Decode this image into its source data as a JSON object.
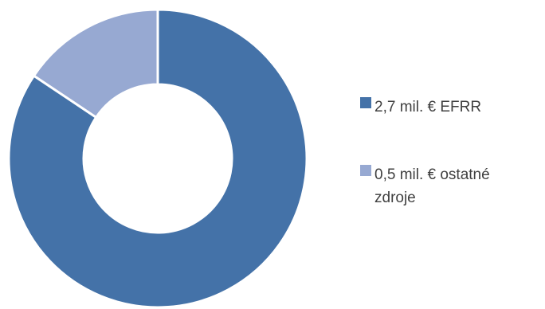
{
  "chart_data": {
    "type": "pie",
    "variant": "donut",
    "title": "",
    "legend_position": "right",
    "slices": [
      {
        "value": 2.7,
        "label": "2,7 mil. € EFRR",
        "label_lines": [
          "2,7 mil. € EFRR"
        ],
        "color": "#4472A8"
      },
      {
        "value": 0.5,
        "label": "0,5 mil. € ostatné zdroje",
        "label_lines": [
          "0,5 mil. € ostatné",
          "zdroje"
        ],
        "color": "#97A9D2"
      }
    ]
  }
}
